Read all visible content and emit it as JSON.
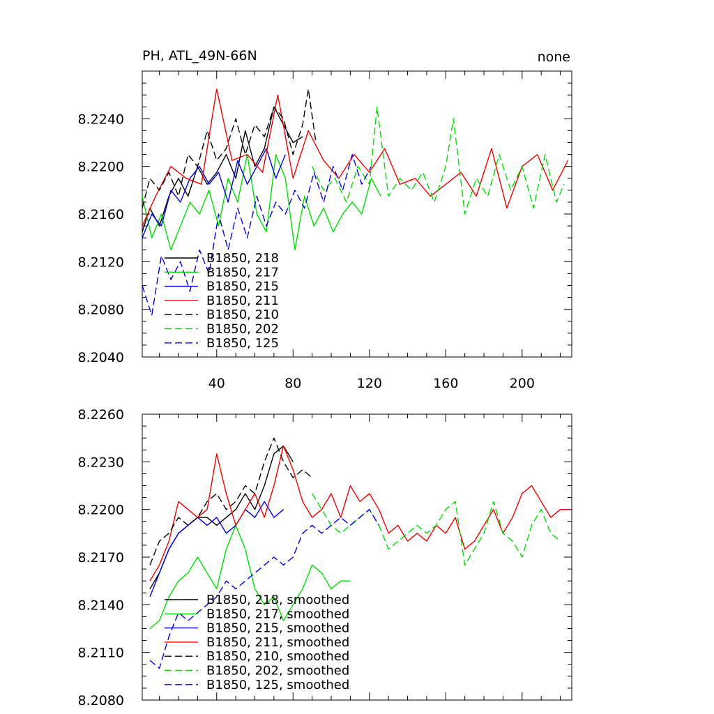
{
  "chart_data": [
    {
      "type": "line",
      "title": "PH, ATL_49N-66N",
      "title_right": "none",
      "xlabel": "",
      "ylabel": "",
      "xlim": [
        1,
        226
      ],
      "ylim": [
        8.204,
        8.228
      ],
      "x_ticks": [
        40,
        80,
        120,
        160,
        200
      ],
      "x_tick_labels": [
        "40",
        "80",
        "120",
        "160",
        "200"
      ],
      "y_ticks": [
        8.204,
        8.208,
        8.212,
        8.216,
        8.22,
        8.224
      ],
      "y_tick_labels": [
        "8.2040",
        "8.2080",
        "8.2120",
        "8.2160",
        "8.2200",
        "8.2240"
      ],
      "legend_position": "bottom-left",
      "series": [
        {
          "name": "B1850, 218",
          "color": "#000000",
          "dash": "solid",
          "x": [
            1,
            5,
            10,
            15,
            20,
            25,
            30,
            35,
            40,
            45,
            50,
            55,
            60,
            65,
            70,
            75,
            80,
            85
          ],
          "values": [
            8.2145,
            8.2165,
            8.215,
            8.2175,
            8.219,
            8.2175,
            8.22,
            8.2185,
            8.2195,
            8.221,
            8.219,
            8.223,
            8.22,
            8.2215,
            8.225,
            8.2235,
            8.222,
            8.2225
          ]
        },
        {
          "name": "B1850, 217",
          "color": "#00dd00",
          "dash": "solid",
          "x": [
            1,
            6,
            11,
            16,
            21,
            26,
            31,
            36,
            41,
            46,
            51,
            56,
            61,
            66,
            71,
            76,
            81,
            86,
            91,
            96,
            101,
            106,
            111,
            116,
            121,
            126
          ],
          "values": [
            8.2175,
            8.214,
            8.216,
            8.213,
            8.215,
            8.217,
            8.216,
            8.218,
            8.215,
            8.219,
            8.217,
            8.221,
            8.216,
            8.2145,
            8.221,
            8.219,
            8.213,
            8.2175,
            8.215,
            8.2165,
            8.2145,
            8.216,
            8.217,
            8.216,
            8.219,
            8.2175
          ]
        },
        {
          "name": "B1850, 215",
          "color": "#0000dd",
          "dash": "solid",
          "x": [
            1,
            6,
            11,
            16,
            21,
            26,
            31,
            36,
            41,
            46,
            51,
            56,
            61,
            66,
            71,
            76
          ],
          "values": [
            8.214,
            8.216,
            8.215,
            8.218,
            8.217,
            8.219,
            8.22,
            8.2185,
            8.2195,
            8.217,
            8.2205,
            8.2185,
            8.22,
            8.2215,
            8.219,
            8.221
          ]
        },
        {
          "name": "B1850, 211",
          "color": "#ee0000",
          "dash": "solid",
          "x": [
            1,
            8,
            16,
            24,
            32,
            40,
            48,
            56,
            64,
            72,
            80,
            88,
            96,
            104,
            112,
            120,
            128,
            136,
            144,
            152,
            160,
            168,
            176,
            184,
            192,
            200,
            208,
            216,
            224
          ],
          "values": [
            8.215,
            8.2175,
            8.22,
            8.219,
            8.2185,
            8.2265,
            8.2205,
            8.221,
            8.2195,
            8.226,
            8.219,
            8.223,
            8.2205,
            8.219,
            8.221,
            8.2195,
            8.2215,
            8.2185,
            8.219,
            8.2175,
            8.2185,
            8.2195,
            8.2175,
            8.2215,
            8.2165,
            8.22,
            8.221,
            8.218,
            8.2205
          ]
        },
        {
          "name": "B1850, 210",
          "color": "#000000",
          "dash": "dash",
          "x": [
            1,
            5,
            10,
            15,
            20,
            25,
            30,
            35,
            40,
            45,
            50,
            55,
            60,
            65,
            70,
            75,
            80,
            85,
            88,
            92
          ],
          "values": [
            8.2165,
            8.219,
            8.218,
            8.2195,
            8.2175,
            8.221,
            8.22,
            8.223,
            8.2205,
            8.2215,
            8.224,
            8.221,
            8.2235,
            8.2225,
            8.225,
            8.224,
            8.221,
            8.2235,
            8.2265,
            8.222
          ]
        },
        {
          "name": "B1850, 202",
          "color": "#00dd00",
          "dash": "dash",
          "x": [
            90,
            96,
            102,
            108,
            114,
            120,
            124,
            130,
            136,
            142,
            148,
            154,
            160,
            164,
            170,
            176,
            182,
            188,
            194,
            200,
            206,
            212,
            218,
            222
          ],
          "values": [
            8.22,
            8.218,
            8.219,
            8.217,
            8.22,
            8.2185,
            8.225,
            8.2175,
            8.219,
            8.218,
            8.2195,
            8.217,
            8.22,
            8.224,
            8.216,
            8.219,
            8.2175,
            8.221,
            8.218,
            8.22,
            8.2165,
            8.221,
            8.217,
            8.2185
          ]
        },
        {
          "name": "B1850, 125",
          "color": "#0000dd",
          "dash": "dash",
          "x": [
            1,
            6,
            11,
            16,
            21,
            26,
            31,
            36,
            41,
            46,
            51,
            56,
            61,
            66,
            71,
            76,
            81,
            86,
            91,
            96,
            101,
            106,
            111,
            116,
            121
          ],
          "values": [
            8.21,
            8.2075,
            8.2125,
            8.2105,
            8.212,
            8.2095,
            8.213,
            8.211,
            8.216,
            8.213,
            8.2165,
            8.214,
            8.2175,
            8.215,
            8.217,
            8.216,
            8.218,
            8.2165,
            8.2195,
            8.217,
            8.22,
            8.218,
            8.221,
            8.2185,
            8.22
          ]
        }
      ]
    },
    {
      "type": "line",
      "title": "",
      "xlabel": "",
      "ylabel": "",
      "xlim": [
        1,
        226
      ],
      "ylim": [
        8.208,
        8.226
      ],
      "x_ticks": [
        40,
        80,
        120,
        160,
        200
      ],
      "x_tick_labels": [],
      "y_ticks": [
        8.208,
        8.211,
        8.214,
        8.217,
        8.22,
        8.223,
        8.226
      ],
      "y_tick_labels": [
        "8.2080",
        "8.2110",
        "8.2140",
        "8.2170",
        "8.2200",
        "8.2230",
        "8.2260"
      ],
      "legend_position": "bottom-left",
      "series": [
        {
          "name": "B1850, 218, smoothed",
          "color": "#000000",
          "dash": "solid",
          "x": [
            5,
            10,
            15,
            20,
            25,
            30,
            35,
            40,
            45,
            50,
            55,
            60,
            65,
            70,
            75,
            80
          ],
          "values": [
            8.215,
            8.216,
            8.2175,
            8.2185,
            8.219,
            8.2195,
            8.2195,
            8.219,
            8.2195,
            8.22,
            8.221,
            8.22,
            8.2215,
            8.2235,
            8.224,
            8.223
          ]
        },
        {
          "name": "B1850, 217, smoothed",
          "color": "#00dd00",
          "dash": "solid",
          "x": [
            5,
            10,
            15,
            20,
            25,
            30,
            35,
            40,
            45,
            50,
            55,
            60,
            65,
            70,
            75,
            80,
            85,
            90,
            95,
            100,
            105,
            110
          ],
          "values": [
            8.2125,
            8.213,
            8.2145,
            8.2155,
            8.216,
            8.217,
            8.216,
            8.215,
            8.2175,
            8.219,
            8.2175,
            8.215,
            8.214,
            8.2145,
            8.213,
            8.214,
            8.215,
            8.2165,
            8.216,
            8.215,
            8.2155,
            8.2155
          ]
        },
        {
          "name": "B1850, 215, smoothed",
          "color": "#0000dd",
          "dash": "solid",
          "x": [
            5,
            10,
            15,
            20,
            25,
            30,
            35,
            40,
            45,
            50,
            55,
            60,
            65,
            70,
            75
          ],
          "values": [
            8.2145,
            8.216,
            8.2175,
            8.2185,
            8.219,
            8.2195,
            8.219,
            8.2195,
            8.2185,
            8.219,
            8.22,
            8.2195,
            8.2205,
            8.2195,
            8.22
          ]
        },
        {
          "name": "B1850, 211, smoothed",
          "color": "#ee0000",
          "dash": "solid",
          "x": [
            5,
            10,
            15,
            20,
            25,
            30,
            35,
            40,
            45,
            50,
            55,
            60,
            65,
            70,
            75,
            80,
            85,
            90,
            95,
            100,
            105,
            110,
            115,
            120,
            125,
            130,
            135,
            140,
            145,
            150,
            155,
            160,
            165,
            170,
            175,
            180,
            185,
            190,
            195,
            200,
            205,
            210,
            215,
            220,
            225
          ],
          "values": [
            8.2155,
            8.2165,
            8.218,
            8.2205,
            8.22,
            8.2195,
            8.22,
            8.2235,
            8.221,
            8.219,
            8.22,
            8.221,
            8.2195,
            8.2215,
            8.224,
            8.2225,
            8.2205,
            8.2195,
            8.22,
            8.221,
            8.2195,
            8.2215,
            8.2205,
            8.221,
            8.22,
            8.2185,
            8.219,
            8.218,
            8.2185,
            8.218,
            8.219,
            8.2185,
            8.2195,
            8.2175,
            8.218,
            8.219,
            8.22,
            8.2185,
            8.2195,
            8.221,
            8.2215,
            8.2205,
            8.2195,
            8.22,
            8.22
          ]
        },
        {
          "name": "B1850, 210, smoothed",
          "color": "#000000",
          "dash": "dash",
          "x": [
            5,
            10,
            15,
            20,
            25,
            30,
            35,
            40,
            45,
            50,
            55,
            60,
            65,
            70,
            75,
            80,
            85,
            90
          ],
          "values": [
            8.2165,
            8.218,
            8.2185,
            8.2195,
            8.219,
            8.2195,
            8.2205,
            8.221,
            8.22,
            8.2205,
            8.2215,
            8.221,
            8.223,
            8.2245,
            8.223,
            8.222,
            8.2225,
            8.222
          ]
        },
        {
          "name": "B1850, 202, smoothed",
          "color": "#00dd00",
          "dash": "dash",
          "x": [
            90,
            95,
            100,
            105,
            110,
            115,
            120,
            125,
            130,
            135,
            140,
            145,
            150,
            155,
            160,
            165,
            170,
            175,
            180,
            185,
            190,
            195,
            200,
            205,
            210,
            215,
            220
          ],
          "values": [
            8.221,
            8.22,
            8.219,
            8.2185,
            8.219,
            8.2195,
            8.22,
            8.219,
            8.2175,
            8.218,
            8.2185,
            8.219,
            8.2185,
            8.219,
            8.22,
            8.2205,
            8.2165,
            8.2175,
            8.2185,
            8.2205,
            8.2185,
            8.218,
            8.217,
            8.219,
            8.22,
            8.2185,
            8.218
          ]
        },
        {
          "name": "B1850, 125, smoothed",
          "color": "#0000dd",
          "dash": "dash",
          "x": [
            5,
            10,
            15,
            20,
            25,
            30,
            35,
            40,
            45,
            50,
            55,
            60,
            65,
            70,
            75,
            80,
            85,
            90,
            95,
            100,
            105,
            110,
            115,
            120,
            125
          ],
          "values": [
            8.2105,
            8.21,
            8.212,
            8.2135,
            8.213,
            8.2135,
            8.214,
            8.2145,
            8.2155,
            8.215,
            8.2155,
            8.216,
            8.2165,
            8.217,
            8.2165,
            8.217,
            8.2185,
            8.219,
            8.2185,
            8.219,
            8.2195,
            8.219,
            8.2195,
            8.22,
            8.219
          ]
        }
      ]
    }
  ]
}
